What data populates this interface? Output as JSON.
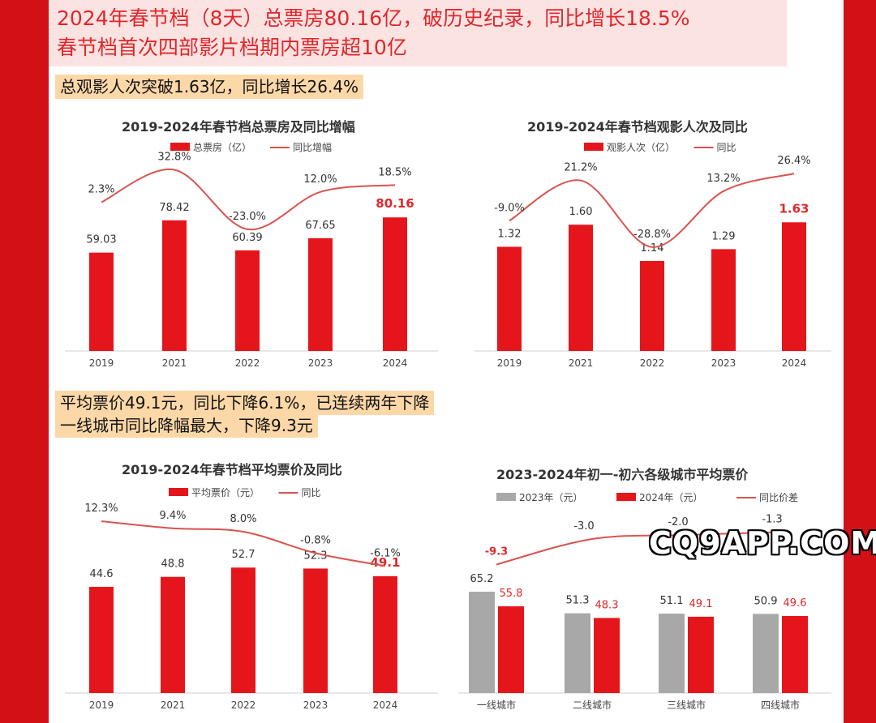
{
  "headline": {
    "line1": "2024年春节档（8天）总票房80.16亿，破历史纪录，同比增长18.5%",
    "line2": "春节档首次四部影片档期内票房超10亿"
  },
  "section1": "总观影人次突破1.63亿，同比增长26.4%",
  "section2": {
    "line1": "平均票价49.1元，同比下降6.1%，已连续两年下降",
    "line2": "一线城市同比降幅最大，下降9.3元"
  },
  "watermark": "CQ9APP.COM",
  "colors": {
    "bar": "#e5161b",
    "bar_gray": "#a8a8a8",
    "line": "#d9534f",
    "highlight": "#e0272b"
  },
  "chart_data": [
    {
      "type": "bar",
      "title": "2019-2024年春节档总票房及同比增幅",
      "categories": [
        "2019",
        "2021",
        "2022",
        "2023",
        "2024"
      ],
      "series": [
        {
          "name": "总票房（亿）",
          "values": [
            59.03,
            78.42,
            60.39,
            67.65,
            80.16
          ],
          "labels": [
            "59.03",
            "78.42",
            "60.39",
            "67.65",
            "80.16"
          ]
        },
        {
          "name": "同比增幅",
          "type": "line",
          "values": [
            2.3,
            32.8,
            -23.0,
            12.0,
            18.5
          ],
          "labels": [
            "2.3%",
            "32.8%",
            "-23.0%",
            "12.0%",
            "18.5%"
          ]
        }
      ]
    },
    {
      "type": "bar",
      "title": "2019-2024年春节档观影人次及同比",
      "categories": [
        "2019",
        "2021",
        "2022",
        "2023",
        "2024"
      ],
      "series": [
        {
          "name": "观影人次（亿）",
          "values": [
            1.32,
            1.6,
            1.14,
            1.29,
            1.63
          ],
          "labels": [
            "1.32",
            "1.60",
            "1.14",
            "1.29",
            "1.63"
          ]
        },
        {
          "name": "同比",
          "type": "line",
          "values": [
            -9.0,
            21.2,
            -28.8,
            13.2,
            26.4
          ],
          "labels": [
            "-9.0%",
            "21.2%",
            "-28.8%",
            "13.2%",
            "26.4%"
          ]
        }
      ]
    },
    {
      "type": "bar",
      "title": "2019-2024年春节档平均票价及同比",
      "categories": [
        "2019",
        "2021",
        "2022",
        "2023",
        "2024"
      ],
      "series": [
        {
          "name": "平均票价（元）",
          "values": [
            44.6,
            48.8,
            52.7,
            52.3,
            49.1
          ],
          "labels": [
            "44.6",
            "48.8",
            "52.7",
            "52.3",
            "49.1"
          ]
        },
        {
          "name": "同比",
          "type": "line",
          "values": [
            12.3,
            9.4,
            8.0,
            -0.8,
            -6.1
          ],
          "labels": [
            "12.3%",
            "9.4%",
            "8.0%",
            "-0.8%",
            "-6.1%"
          ]
        }
      ]
    },
    {
      "type": "bar",
      "title": "2023-2024年初一-初六各级城市平均票价",
      "categories": [
        "一线城市",
        "二线城市",
        "三线城市",
        "四线城市"
      ],
      "series": [
        {
          "name": "2023年（元）",
          "values": [
            65.2,
            51.3,
            51.1,
            50.9
          ],
          "labels": [
            "65.2",
            "51.3",
            "51.1",
            "50.9"
          ]
        },
        {
          "name": "2024年（元）",
          "values": [
            55.8,
            48.3,
            49.1,
            49.6
          ],
          "labels": [
            "55.8",
            "48.3",
            "49.1",
            "49.6"
          ]
        },
        {
          "name": "同比价差",
          "type": "line",
          "values": [
            -9.3,
            -3.0,
            -2.0,
            -1.3
          ],
          "labels": [
            "-9.3",
            "-3.0",
            "-2.0",
            "-1.3"
          ]
        }
      ]
    }
  ]
}
